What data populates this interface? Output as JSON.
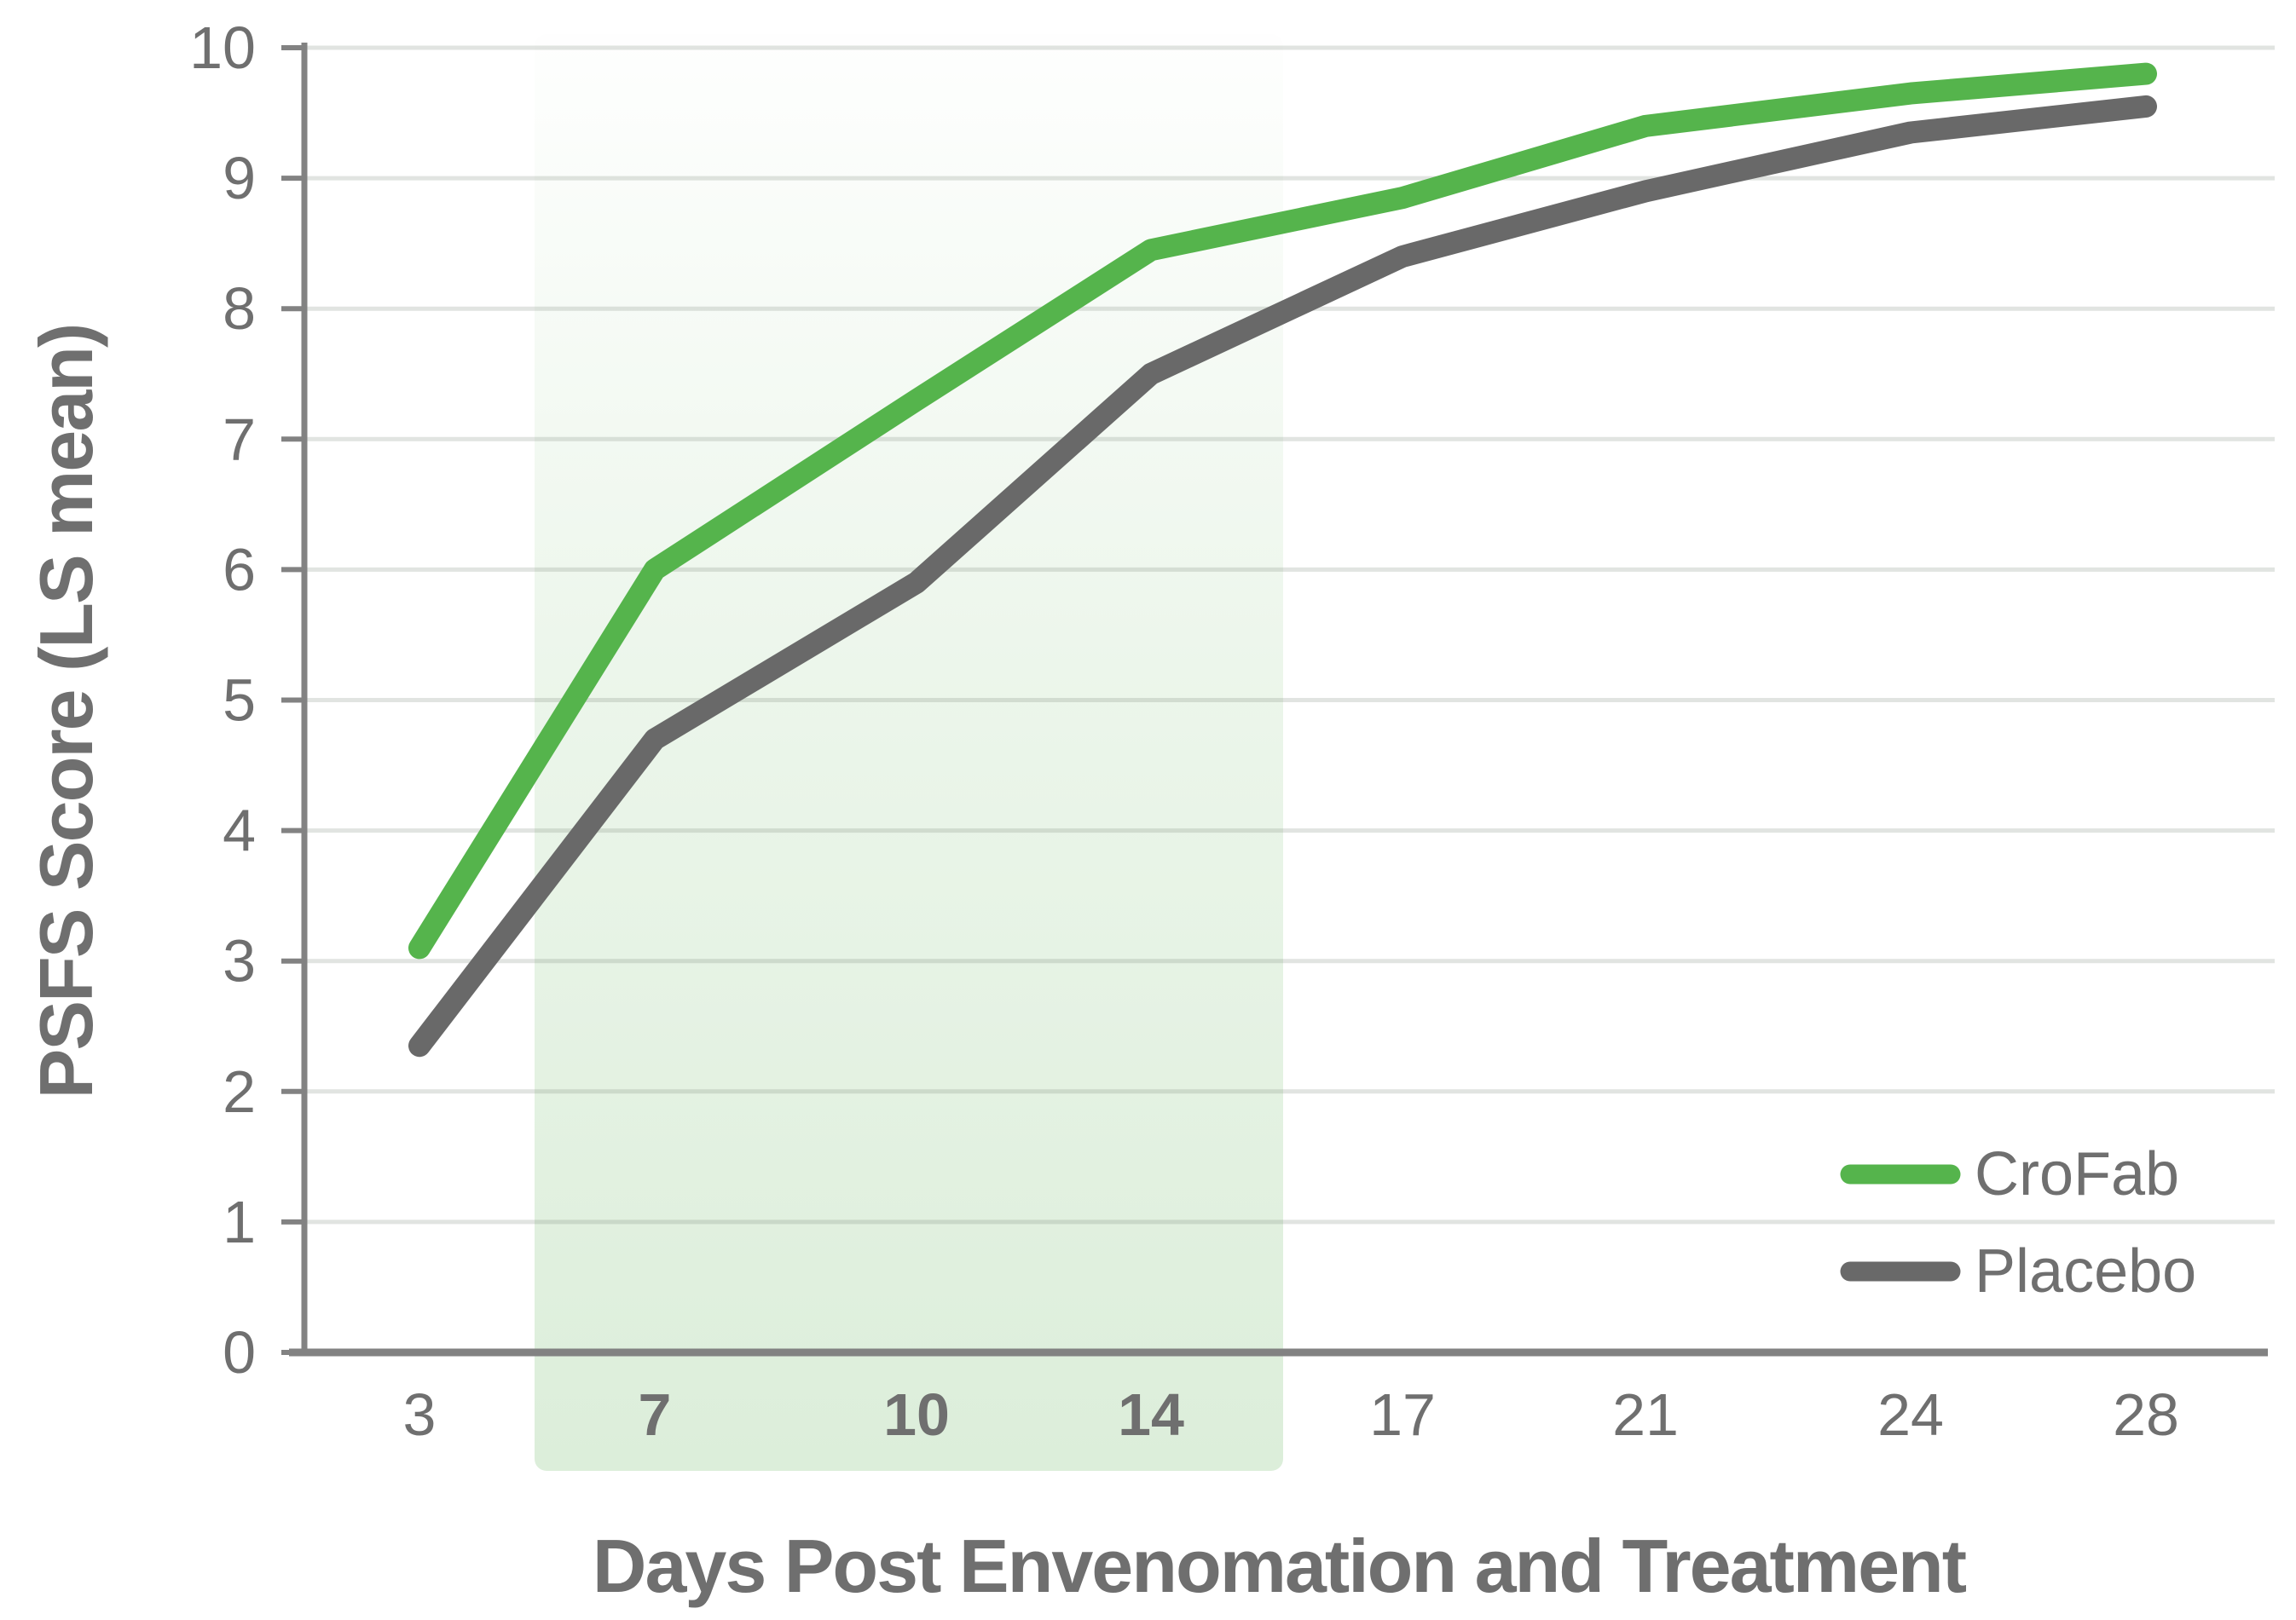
{
  "chart_data": {
    "type": "line",
    "title": "",
    "xlabel": "Days Post Envenomation and Treatment",
    "ylabel": "PSFS Score (LS mean)",
    "categories": [
      "3",
      "7",
      "10",
      "14",
      "17",
      "21",
      "24",
      "28"
    ],
    "series": [
      {
        "name": "CroFab",
        "color": "#55b44c",
        "values": [
          3.1,
          6.0,
          7.3,
          8.45,
          8.85,
          9.4,
          9.65,
          9.8
        ]
      },
      {
        "name": "Placebo",
        "color": "#696969",
        "values": [
          2.35,
          4.7,
          5.9,
          7.5,
          8.4,
          8.9,
          9.35,
          9.55
        ]
      }
    ],
    "ylim": [
      0,
      10
    ],
    "yticks": [
      0,
      1,
      2,
      3,
      4,
      5,
      6,
      7,
      8,
      9,
      10
    ],
    "grid": true,
    "legend_position": "inside-bottom-right",
    "highlight_band": {
      "from_category": "7",
      "to_category": "14",
      "color": "#dceeda",
      "fade": "transparent-top-to-green-bottom",
      "bold_tick_labels": [
        "7",
        "10",
        "14"
      ]
    },
    "style": {
      "text_color": "#6f6f6f",
      "axis_color": "#828282",
      "gridline_color": "#e7e7e7",
      "line_width": 26
    }
  }
}
